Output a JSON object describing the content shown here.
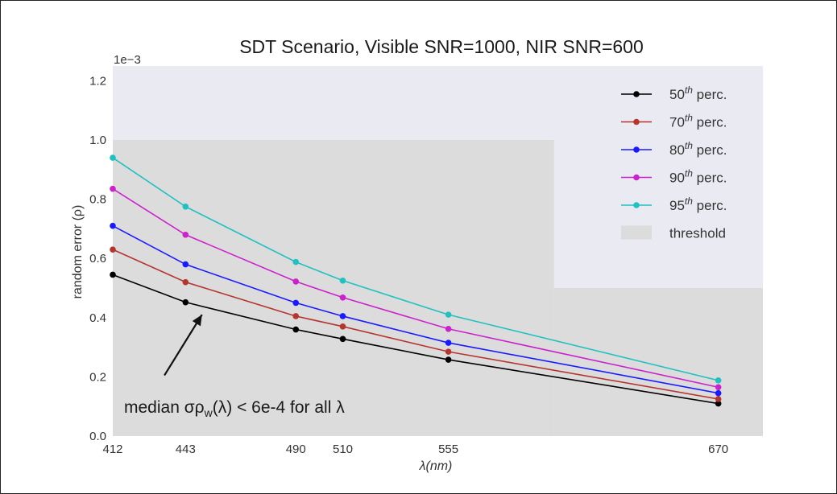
{
  "chart_data": {
    "type": "line",
    "title": "SDT Scenario, Visible SNR=1000, NIR SNR=600",
    "xlabel": "λ(nm)",
    "ylabel": "random error (ρ)",
    "y_offset_label": "1e−3",
    "x": [
      412,
      443,
      490,
      510,
      555,
      670
    ],
    "xlim": [
      412,
      689
    ],
    "ylim": [
      0,
      1.25
    ],
    "yticks": [
      "0.0",
      "0.2",
      "0.4",
      "0.6",
      "0.8",
      "1.0",
      "1.2"
    ],
    "ytick_values": [
      0.0,
      0.2,
      0.4,
      0.6,
      0.8,
      1.0,
      1.2
    ],
    "xticks": [
      "412",
      "443",
      "490",
      "510",
      "555",
      "670"
    ],
    "series": [
      {
        "name": "50th perc.",
        "color": "#000000",
        "values": [
          0.545,
          0.452,
          0.36,
          0.328,
          0.258,
          0.11
        ]
      },
      {
        "name": "70th perc.",
        "color": "#b5352f",
        "values": [
          0.63,
          0.52,
          0.405,
          0.37,
          0.285,
          0.125
        ]
      },
      {
        "name": "80th perc.",
        "color": "#1a1aff",
        "values": [
          0.71,
          0.58,
          0.45,
          0.405,
          0.315,
          0.145
        ]
      },
      {
        "name": "90th perc.",
        "color": "#cc22cc",
        "values": [
          0.835,
          0.68,
          0.522,
          0.468,
          0.362,
          0.165
        ]
      },
      {
        "name": "95th perc.",
        "color": "#22c1c1",
        "values": [
          0.94,
          0.775,
          0.588,
          0.525,
          0.41,
          0.188
        ]
      }
    ],
    "threshold": {
      "name": "threshold",
      "color": "#dcdcdc",
      "regions": [
        {
          "x_from": 412,
          "x_to": 600,
          "y_max": 1.0
        },
        {
          "x_from": 600,
          "x_to": 689,
          "y_max": 0.5
        }
      ]
    },
    "legend": {
      "placement": "top-right",
      "entries": [
        {
          "base": "50",
          "sup": "th",
          "rest": " perc."
        },
        {
          "base": "70",
          "sup": "th",
          "rest": " perc."
        },
        {
          "base": "80",
          "sup": "th",
          "rest": " perc."
        },
        {
          "base": "90",
          "sup": "th",
          "rest": " perc."
        },
        {
          "base": "95",
          "sup": "th",
          "rest": " perc."
        },
        {
          "label": "threshold"
        }
      ]
    },
    "annotation": {
      "text_prefix": "median σρ",
      "text_sub": "w",
      "text_suffix": "(λ) < 6e-4 for all λ",
      "arrow_from": [
        434,
        0.205
      ],
      "arrow_to": [
        450,
        0.41
      ]
    },
    "background_color": "#eaeaf2",
    "grid": false
  }
}
